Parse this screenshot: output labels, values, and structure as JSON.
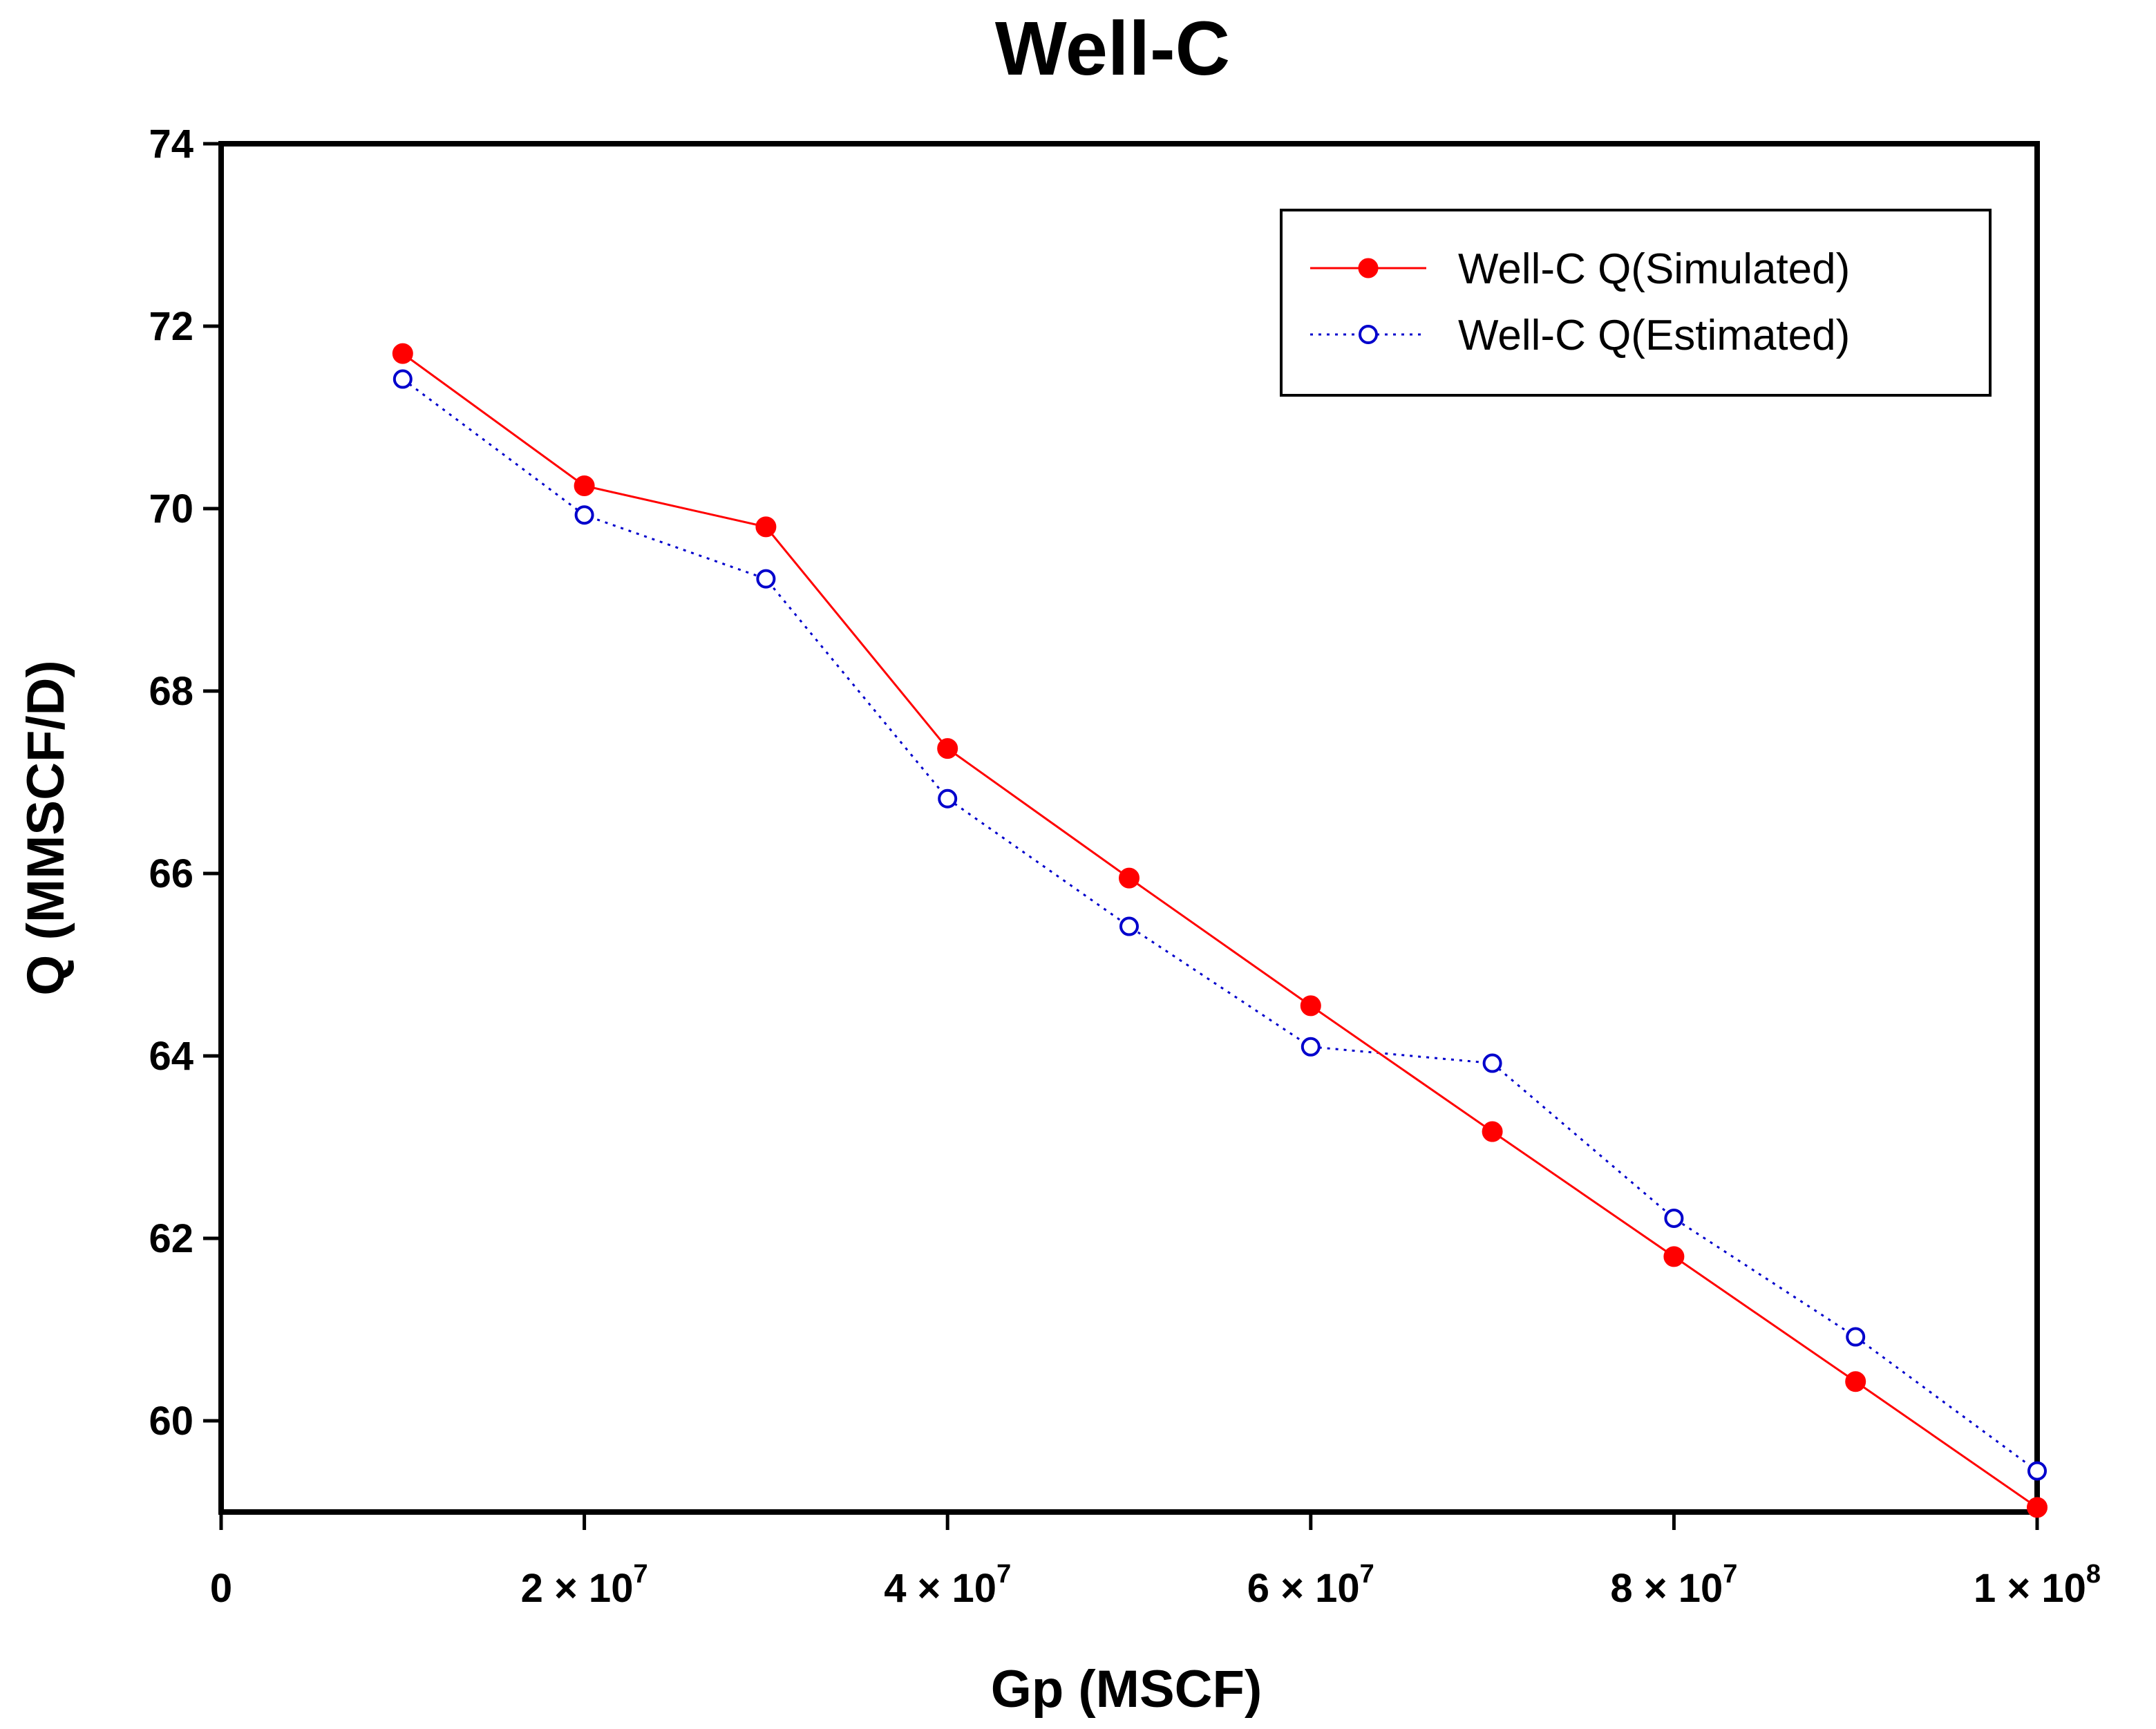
{
  "chart_data": {
    "type": "line",
    "title": "Well-C",
    "xlabel": "Gp (MSCF)",
    "ylabel": "Q (MMSCF/D)",
    "xlim": [
      0,
      100000000
    ],
    "ylim": [
      59,
      74
    ],
    "x_ticks": [
      {
        "value": 0,
        "mantissa": "0",
        "exp": ""
      },
      {
        "value": 20000000,
        "mantissa": "2 × 10",
        "exp": "7"
      },
      {
        "value": 40000000,
        "mantissa": "4 × 10",
        "exp": "7"
      },
      {
        "value": 60000000,
        "mantissa": "6 × 10",
        "exp": "7"
      },
      {
        "value": 80000000,
        "mantissa": "8 × 10",
        "exp": "7"
      },
      {
        "value": 100000000,
        "mantissa": "1 × 10",
        "exp": "8"
      }
    ],
    "y_ticks": [
      {
        "value": 60,
        "label": "60"
      },
      {
        "value": 62,
        "label": "62"
      },
      {
        "value": 64,
        "label": "64"
      },
      {
        "value": 66,
        "label": "66"
      },
      {
        "value": 68,
        "label": "68"
      },
      {
        "value": 70,
        "label": "70"
      },
      {
        "value": 72,
        "label": "72"
      },
      {
        "value": 74,
        "label": "74"
      }
    ],
    "grid": false,
    "legend_position": "top-right",
    "x": [
      10000000,
      20000000,
      30000000,
      40000000,
      50000000,
      60000000,
      70000000,
      80000000,
      90000000,
      100000000
    ],
    "series": [
      {
        "name": "Well-C Q(Simulated)",
        "color": "#ff0000",
        "marker": "filled-circle",
        "line_style": "solid",
        "values": [
          71.7,
          70.25,
          69.8,
          67.37,
          65.95,
          64.55,
          63.17,
          61.8,
          60.43,
          59.05
        ]
      },
      {
        "name": "Well-C Q(Estimated)",
        "color": "#0000cc",
        "marker": "open-circle",
        "line_style": "dotted",
        "values": [
          71.42,
          69.93,
          69.23,
          66.82,
          65.42,
          64.1,
          63.92,
          62.22,
          60.92,
          59.45
        ]
      }
    ]
  }
}
